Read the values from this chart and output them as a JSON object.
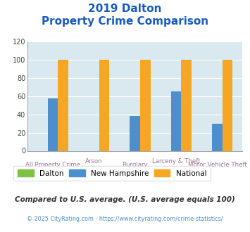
{
  "title_line1": "2019 Dalton",
  "title_line2": "Property Crime Comparison",
  "categories": [
    "All Property Crime",
    "Arson",
    "Burglary",
    "Larceny & Theft",
    "Motor Vehicle Theft"
  ],
  "cat_row1": [
    "",
    "Arson",
    "",
    "Larceny & Theft",
    ""
  ],
  "cat_row2": [
    "All Property Crime",
    "",
    "Burglary",
    "",
    "Motor Vehicle Theft"
  ],
  "dalton": [
    0,
    0,
    0,
    0,
    0
  ],
  "new_hampshire": [
    58,
    0,
    38,
    65,
    30
  ],
  "national": [
    100,
    100,
    100,
    100,
    100
  ],
  "dalton_color": "#7dc242",
  "nh_color": "#4d8fcc",
  "national_color": "#f5a623",
  "bg_color": "#dae8f0",
  "title_color": "#1a5bbf",
  "xlabel_color": "#997799",
  "ylim": [
    0,
    120
  ],
  "yticks": [
    0,
    20,
    40,
    60,
    80,
    100,
    120
  ],
  "legend_labels": [
    "Dalton",
    "New Hampshire",
    "National"
  ],
  "footer_text1": "Compared to U.S. average. (U.S. average equals 100)",
  "footer_text2": "© 2025 CityRating.com - https://www.cityrating.com/crime-statistics/",
  "footer_color1": "#333333",
  "footer_color2": "#4d8fcc"
}
